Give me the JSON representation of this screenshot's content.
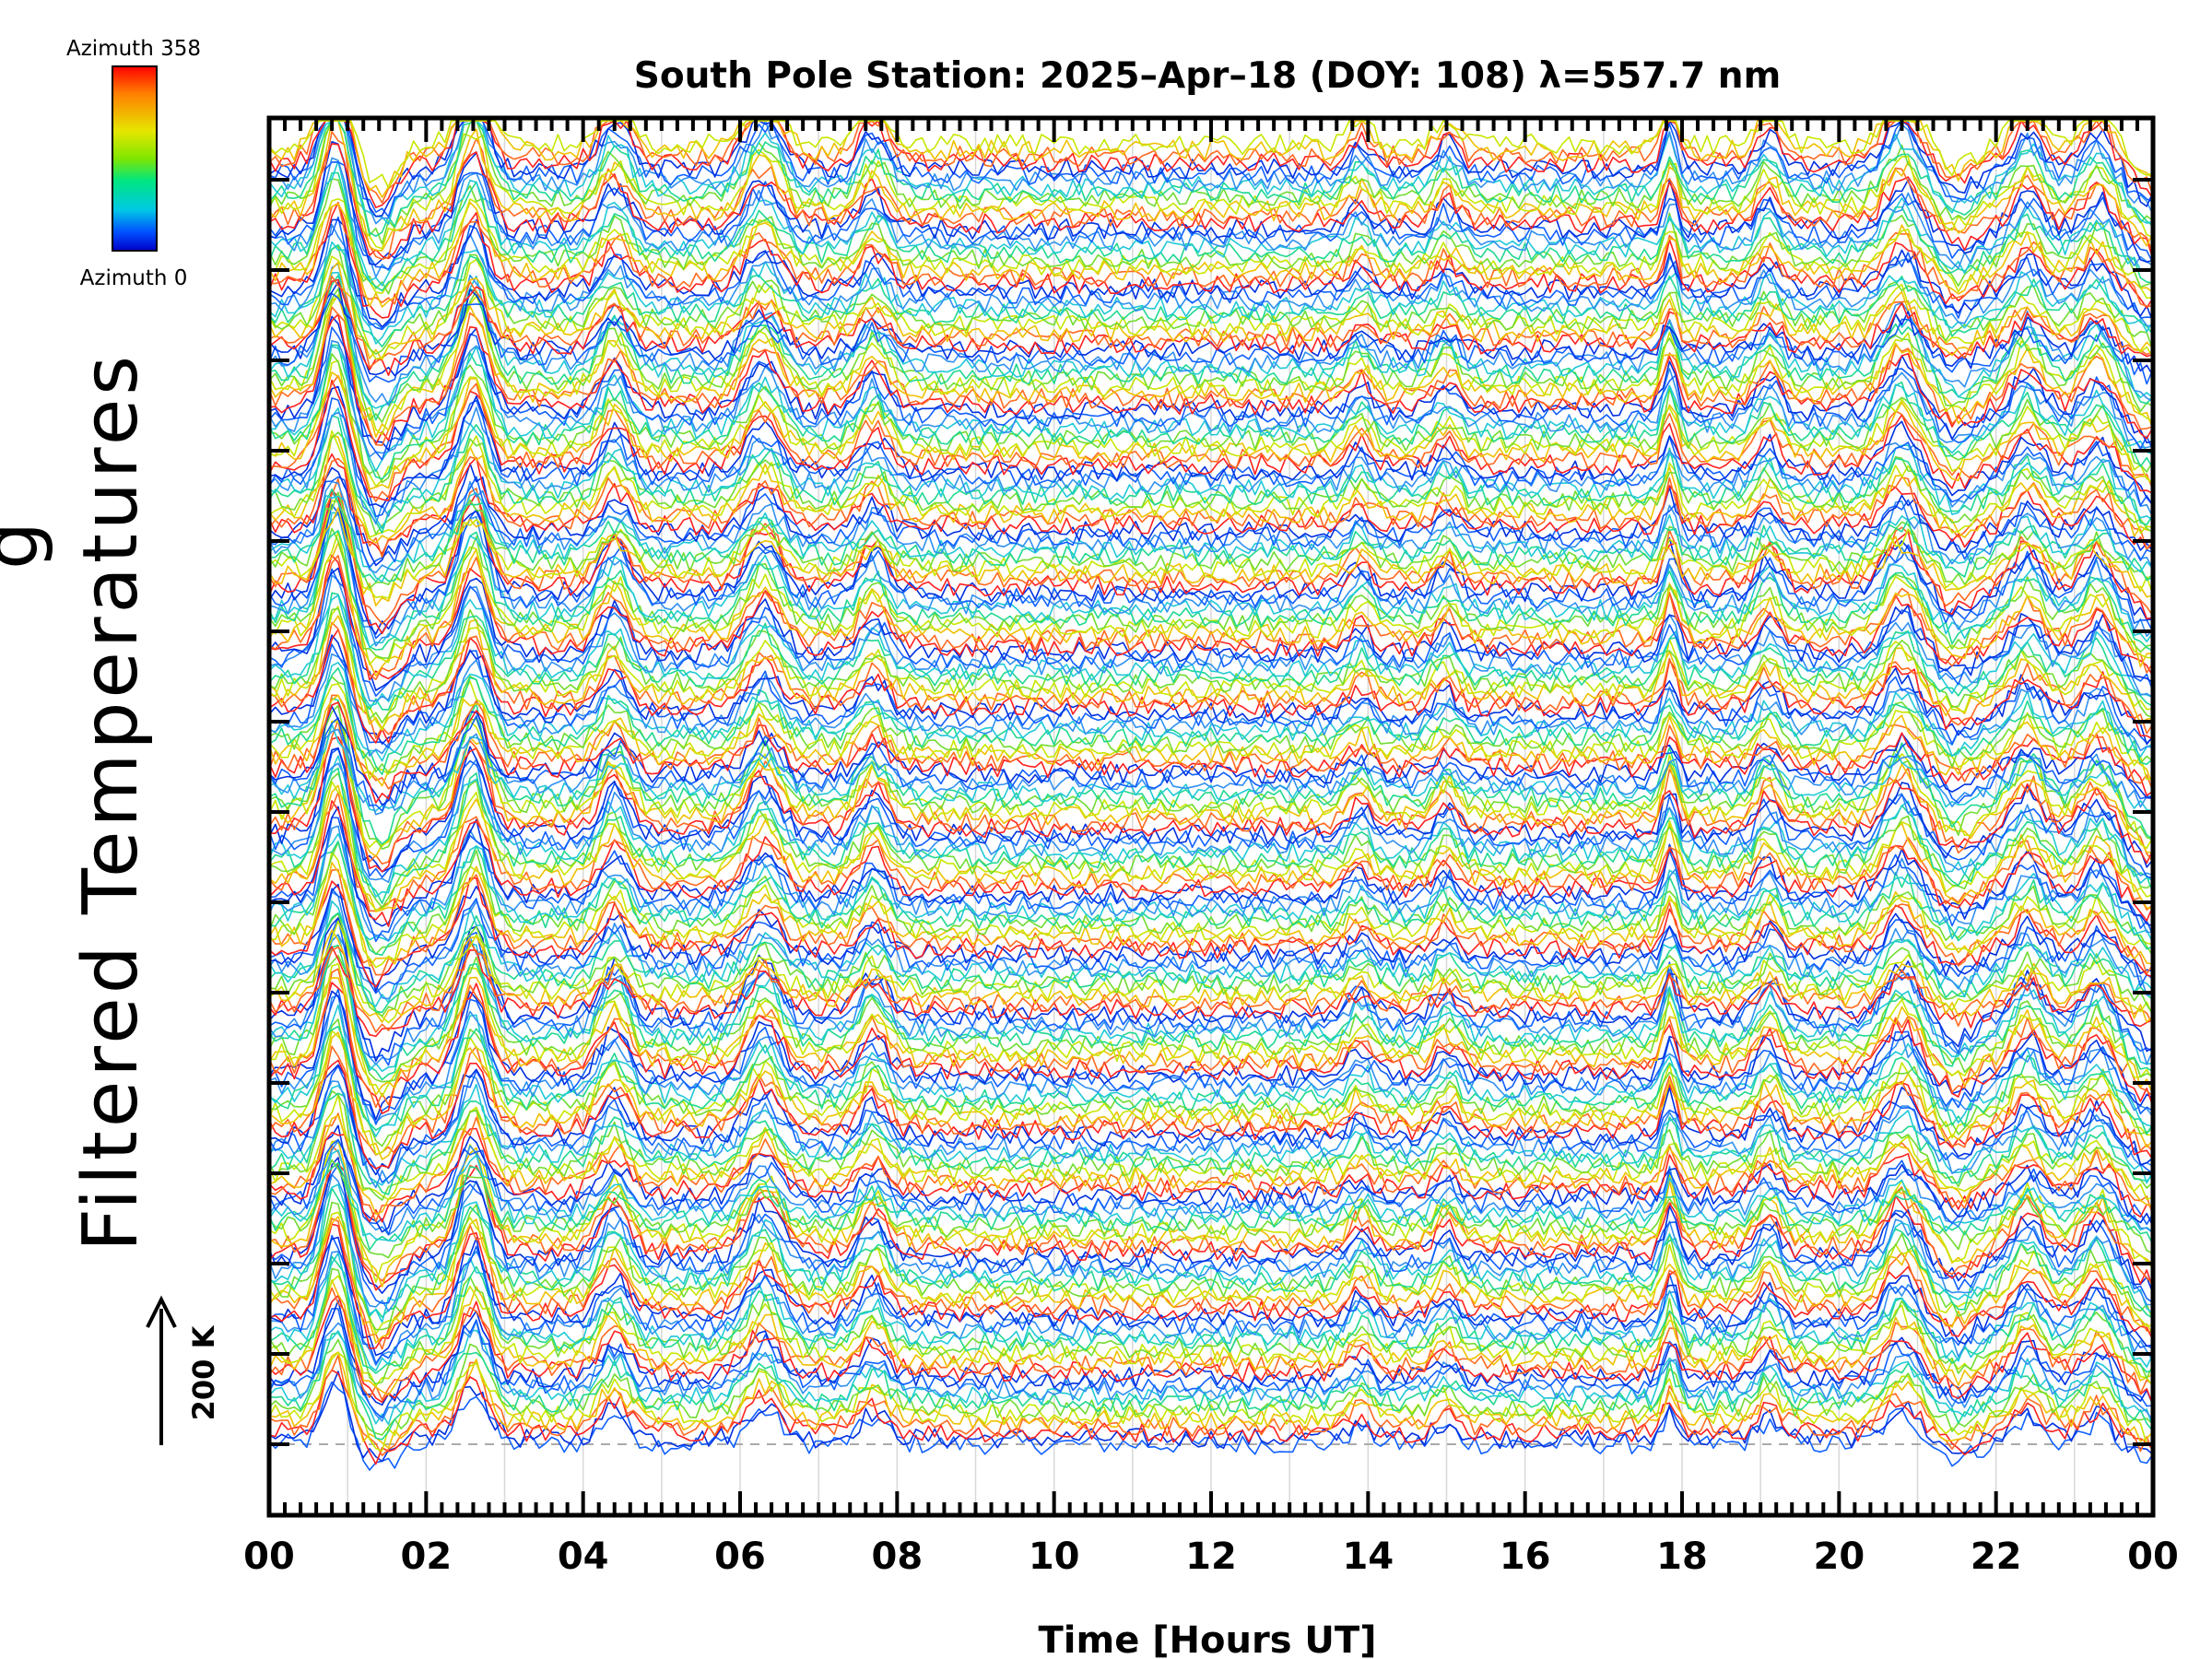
{
  "chart_data": {
    "type": "line",
    "title": "South Pole Station: 2025–Apr–18 (DOY: 108) λ=557.7 nm",
    "xlabel": "Time [Hours UT]",
    "ylabel": "Filtered Temperatures",
    "ylabel_prefix": "g",
    "x_tick_labels": [
      "00",
      "02",
      "04",
      "06",
      "08",
      "10",
      "12",
      "14",
      "16",
      "18",
      "20",
      "22",
      "00"
    ],
    "x_range_hours": [
      0,
      24
    ],
    "scale_bar_label": "200 K",
    "colorbar": {
      "top_label": "Azimuth 358",
      "bottom_label": "Azimuth 0",
      "colors": [
        "#ff0000",
        "#ff8000",
        "#e6e600",
        "#80e600",
        "#00e680",
        "#00c8e6",
        "#0050ff",
        "#0000c8"
      ]
    },
    "grid": true,
    "peak_hours": [
      0.85,
      2.6,
      4.4,
      6.3,
      7.7,
      13.9,
      15.0,
      17.85,
      19.1,
      20.8,
      22.4,
      23.3
    ],
    "series_count": 216,
    "line_colors": [
      "#1060ff",
      "#0030e0",
      "#ff2020",
      "#ff6a20",
      "#f0c000",
      "#c8e600",
      "#70dc30",
      "#20d890",
      "#20c8d8",
      "#3090f0"
    ]
  }
}
